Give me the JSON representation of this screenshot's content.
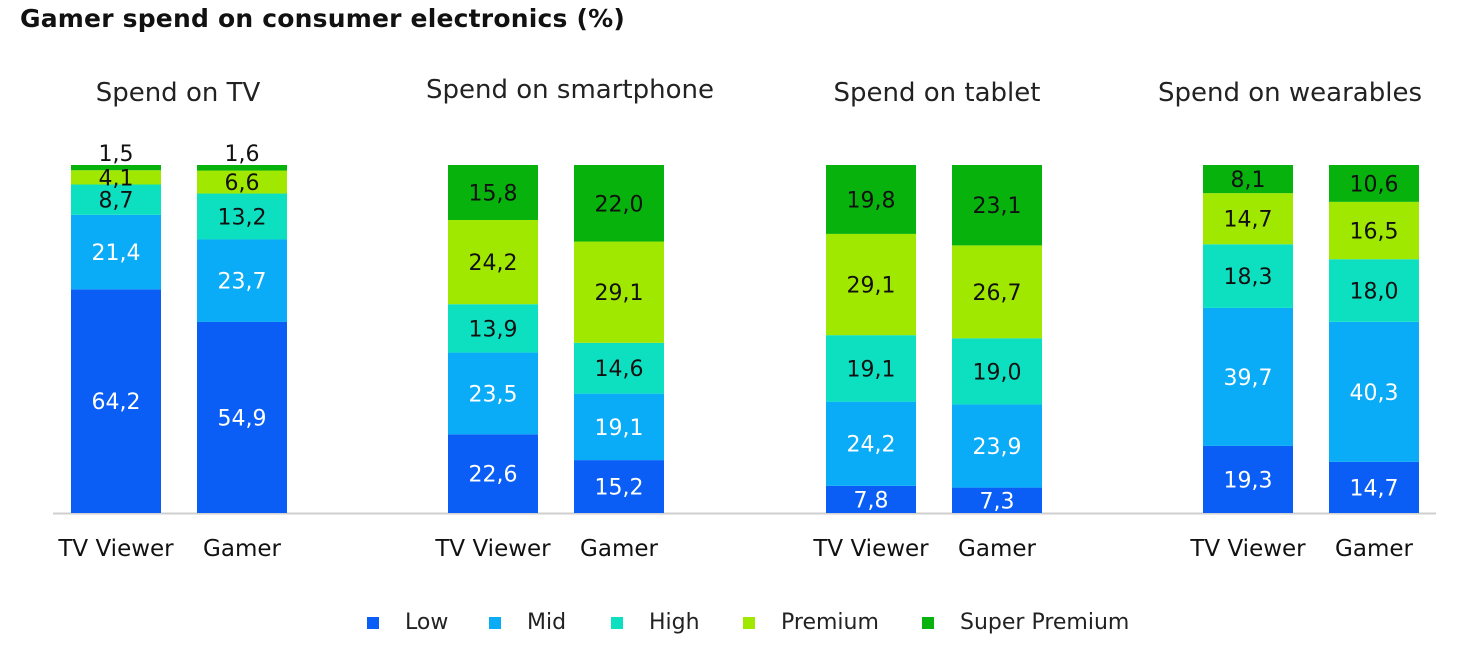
{
  "title": "Gamer spend on consumer electronics (%)",
  "colors": {
    "Low": "#0a5ef5",
    "Mid": "#0aabf7",
    "High": "#0ce0c1",
    "Premium": "#a1e800",
    "Super Premium": "#07b20d"
  },
  "chart_data": {
    "type": "bar",
    "stacked": true,
    "title": "Gamer spend on consumer electronics (%)",
    "segments": [
      "Low",
      "Mid",
      "High",
      "Premium",
      "Super Premium"
    ],
    "legend": [
      "Low",
      "Mid",
      "High",
      "Premium",
      "Super Premium"
    ],
    "legend_position": "bottom",
    "ylim": [
      0,
      100
    ],
    "panels": [
      {
        "title": "Spend on TV",
        "categories": [
          "TV Viewer",
          "Gamer"
        ],
        "bars": [
          {
            "category": "TV Viewer",
            "values": [
              64.2,
              21.4,
              8.7,
              4.1,
              1.5
            ],
            "labels": [
              "64,2",
              "21,4",
              "8,7",
              "4,1",
              "1,5"
            ]
          },
          {
            "category": "Gamer",
            "values": [
              54.9,
              23.7,
              13.2,
              6.6,
              1.6
            ],
            "labels": [
              "54,9",
              "23,7",
              "13,2",
              "6,6",
              "1,6"
            ]
          }
        ]
      },
      {
        "title": "Spend on smartphone",
        "categories": [
          "TV Viewer",
          "Gamer"
        ],
        "bars": [
          {
            "category": "TV Viewer",
            "values": [
              22.6,
              23.5,
              13.9,
              24.2,
              15.8
            ],
            "labels": [
              "22,6",
              "23,5",
              "13,9",
              "24,2",
              "15,8"
            ]
          },
          {
            "category": "Gamer",
            "values": [
              15.2,
              19.1,
              14.6,
              29.1,
              22.0
            ],
            "labels": [
              "15,2",
              "19,1",
              "14,6",
              "29,1",
              "22,0"
            ]
          }
        ]
      },
      {
        "title": "Spend on tablet",
        "categories": [
          "TV Viewer",
          "Gamer"
        ],
        "bars": [
          {
            "category": "TV Viewer",
            "values": [
              7.8,
              24.2,
              19.1,
              29.1,
              19.8
            ],
            "labels": [
              "7,8",
              "24,2",
              "19,1",
              "29,1",
              "19,8"
            ]
          },
          {
            "category": "Gamer",
            "values": [
              7.3,
              23.9,
              19.0,
              26.7,
              23.1
            ],
            "labels": [
              "7,3",
              "23,9",
              "19,0",
              "26,7",
              "23,1"
            ]
          }
        ]
      },
      {
        "title": "Spend on wearables",
        "categories": [
          "TV Viewer",
          "Gamer"
        ],
        "bars": [
          {
            "category": "TV Viewer",
            "values": [
              19.3,
              39.7,
              18.3,
              14.7,
              8.1
            ],
            "labels": [
              "19,3",
              "39,7",
              "18,3",
              "14,7",
              "8,1"
            ]
          },
          {
            "category": "Gamer",
            "values": [
              14.7,
              40.3,
              18.0,
              16.5,
              10.6
            ],
            "labels": [
              "14,7",
              "40,3",
              "18,0",
              "16,5",
              "10,6"
            ]
          }
        ]
      }
    ]
  }
}
